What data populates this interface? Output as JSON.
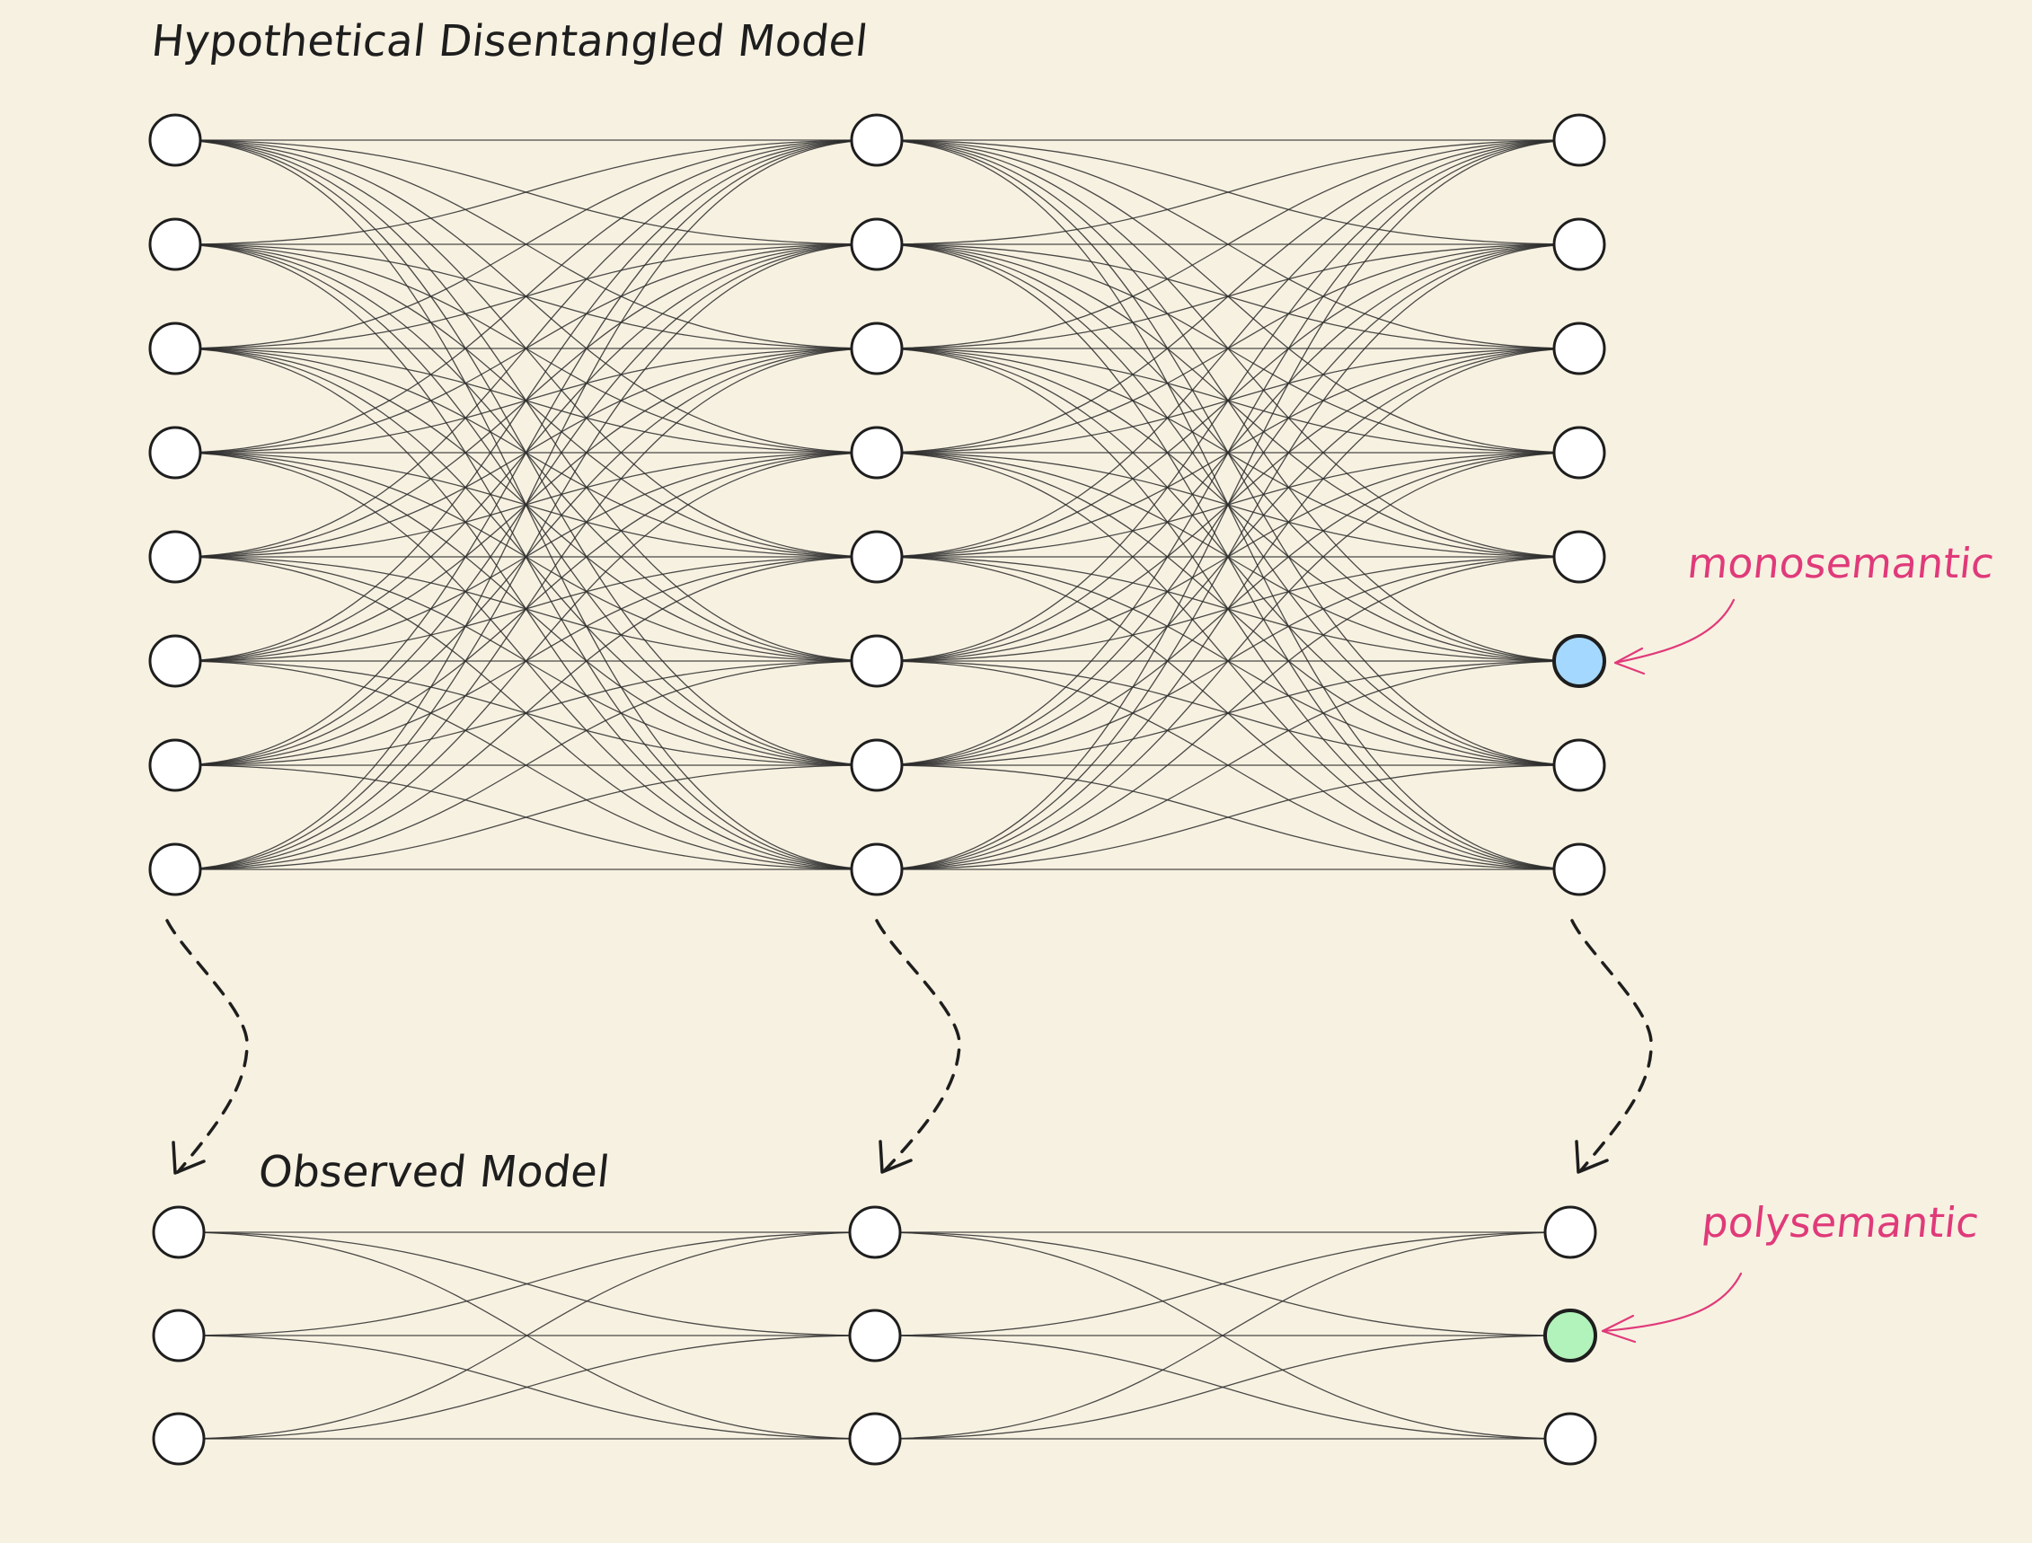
{
  "diagram": {
    "top_title": "Hypothetical Disentangled Model",
    "bottom_title": "Observed Model",
    "annotations": {
      "monosemantic": "monosemantic",
      "polysemantic": "polysemantic"
    },
    "top_network": {
      "layers": 3,
      "neurons_per_layer": 8,
      "highlighted_neuron": {
        "layer": 3,
        "index": 6
      }
    },
    "bottom_network": {
      "layers": 3,
      "neurons_per_layer": 3,
      "highlighted_neuron": {
        "layer": 3,
        "index": 2
      }
    },
    "colors": {
      "background": "#f7f1e1",
      "node_fill": "#ffffff",
      "node_stroke": "#1e1e1e",
      "edge": "#2b2b2b",
      "monosemantic_fill": "#a5d8ff",
      "polysemantic_fill": "#b2f2bb",
      "annotation": "#e03a7a",
      "arrow": "#1e1e1e"
    }
  }
}
